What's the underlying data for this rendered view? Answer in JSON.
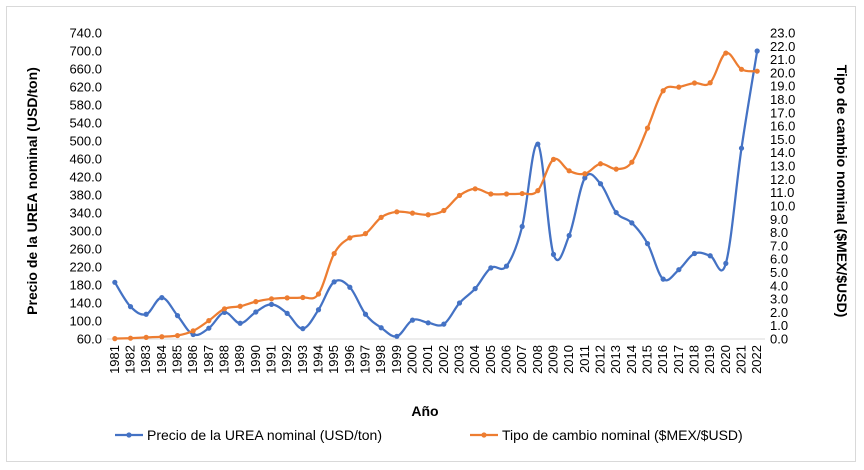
{
  "chart_data": {
    "type": "line",
    "title": "",
    "xlabel": "Año",
    "ylabel_left": "Precio de la UREA nominal (USD/ton)",
    "ylabel_right": "Tipo de cambio nominal ($MEX/$USD)",
    "y_left_range": [
      60,
      740
    ],
    "y_left_step": 40,
    "y_left_decimals": 1,
    "y_right_range": [
      0,
      23
    ],
    "y_right_step": 1,
    "y_right_decimals": 1,
    "grid": false,
    "legend_position": "bottom",
    "categories": [
      "1981",
      "1982",
      "1983",
      "1984",
      "1985",
      "1986",
      "1987",
      "1988",
      "1989",
      "1990",
      "1991",
      "1992",
      "1993",
      "1994",
      "1995",
      "1996",
      "1997",
      "1998",
      "1999",
      "2000",
      "2001",
      "2002",
      "2003",
      "2004",
      "2005",
      "2006",
      "2007",
      "2008",
      "2009",
      "2010",
      "2011",
      "2012",
      "2013",
      "2014",
      "2015",
      "2016",
      "2017",
      "2018",
      "2019",
      "2020",
      "2021",
      "2022"
    ],
    "series": [
      {
        "name": "Precio de la UREA nominal (USD/ton)",
        "axis": "left",
        "color": "#4472C4",
        "values": [
          186,
          132,
          115,
          152,
          112,
          70,
          84,
          119,
          95,
          120,
          137,
          117,
          83,
          125,
          187,
          175,
          115,
          85,
          66,
          102,
          96,
          93,
          140,
          172,
          218,
          222,
          310,
          493,
          248,
          290,
          418,
          405,
          341,
          318,
          272,
          193,
          214,
          250,
          245,
          228,
          484,
          700
        ]
      },
      {
        "name": "Tipo de cambio nominal ($MEX/$USD)",
        "axis": "right",
        "color": "#ED7D31",
        "values": [
          0.03,
          0.06,
          0.12,
          0.17,
          0.26,
          0.61,
          1.38,
          2.27,
          2.46,
          2.81,
          3.02,
          3.09,
          3.12,
          3.38,
          6.42,
          7.6,
          7.92,
          9.14,
          9.56,
          9.46,
          9.34,
          9.66,
          10.79,
          11.29,
          10.9,
          10.9,
          10.93,
          11.15,
          13.5,
          12.64,
          12.42,
          13.17,
          12.77,
          13.29,
          15.85,
          18.66,
          18.93,
          19.24,
          19.26,
          21.49,
          20.27,
          20.13
        ]
      }
    ]
  }
}
